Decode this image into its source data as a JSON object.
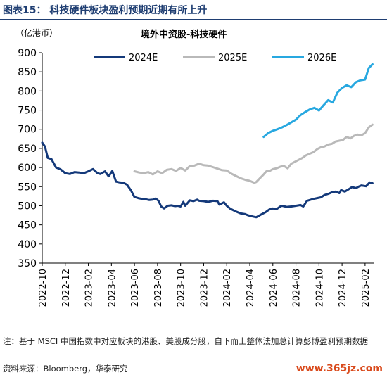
{
  "header": {
    "title": "图表15： 科技硬件板块盈利预期近期有所上升"
  },
  "chart_data": {
    "type": "line",
    "title": "境外中资股-科技硬件",
    "unit_label": "（亿港币）",
    "ylim": [
      350,
      900
    ],
    "yticks": [
      350,
      400,
      450,
      500,
      550,
      600,
      650,
      700,
      750,
      800,
      850,
      900
    ],
    "xticks": [
      "2022-10",
      "2022-12",
      "2023-02",
      "2023-04",
      "2023-06",
      "2023-08",
      "2023-10",
      "2023-12",
      "2024-02",
      "2024-04",
      "2024-06",
      "2024-08",
      "2024-10",
      "2024-12",
      "2025-02"
    ],
    "legend_position": "top",
    "series": [
      {
        "name": "2024E",
        "color": "#14397a",
        "x": [
          0,
          0.3,
          0.6,
          1,
          1.5,
          2,
          2.5,
          3,
          3.5,
          4,
          4.5,
          5,
          5.5,
          6,
          6.3,
          6.8,
          7.2,
          7.6,
          8,
          8.4,
          8.8,
          9.2,
          9.6,
          10,
          10.4,
          10.8,
          11.2,
          11.6,
          12,
          12.3,
          12.6,
          12.9,
          13.2,
          13.6,
          14,
          14.4,
          14.7,
          15,
          15.3,
          15.5,
          16,
          16.4,
          16.8,
          17,
          17.5,
          18,
          18.5,
          19,
          19.2,
          19.7,
          20,
          20.4,
          21,
          21.5,
          22,
          22.3,
          22.8,
          23.2,
          23.8,
          24.2,
          24.6,
          25,
          25.4,
          25.8,
          26,
          26.5,
          27,
          27.5,
          28,
          28.3,
          28.7,
          29,
          29.4,
          29.8,
          30.2,
          30.6,
          31,
          31.4,
          31.8,
          32.2,
          32.4,
          32.8,
          33.2,
          33.6,
          34,
          34.3,
          34.6,
          35.1,
          35.5,
          35.8
        ],
        "values": [
          665,
          655,
          625,
          622,
          600,
          595,
          585,
          583,
          588,
          587,
          585,
          590,
          596,
          585,
          583,
          590,
          577,
          591,
          563,
          561,
          560,
          555,
          541,
          523,
          520,
          518,
          517,
          515,
          516,
          519,
          513,
          498,
          493,
          500,
          501,
          499,
          500,
          498,
          510,
          500,
          514,
          512,
          516,
          513,
          512,
          510,
          513,
          512,
          503,
          509,
          500,
          492,
          485,
          480,
          478,
          475,
          472,
          470,
          478,
          483,
          490,
          493,
          491,
          498,
          500,
          497,
          498,
          500,
          502,
          498,
          513,
          515,
          518,
          520,
          522,
          528,
          531,
          535,
          537,
          533,
          541,
          537,
          543,
          549,
          546,
          550,
          553,
          551,
          561,
          559
        ]
      },
      {
        "name": "2025E",
        "color": "#b9b9b9",
        "x": [
          10,
          10.5,
          11,
          11.5,
          12,
          12.5,
          13,
          13.5,
          14,
          14.5,
          15,
          15.5,
          16,
          16.5,
          17,
          17.5,
          18,
          18.5,
          19,
          19.5,
          20,
          20.5,
          21,
          21.5,
          22,
          22.5,
          23,
          23.2,
          23.6,
          24,
          24.3,
          24.6,
          25,
          25.4,
          25.8,
          26.2,
          26.6,
          27,
          27.4,
          27.8,
          28.2,
          28.6,
          29,
          29.4,
          29.8,
          30.2,
          30.6,
          31,
          31.4,
          31.8,
          32.2,
          32.6,
          33,
          33.4,
          33.8,
          34.2,
          34.6,
          35,
          35.4,
          35.8
        ],
        "values": [
          590,
          587,
          585,
          588,
          582,
          590,
          585,
          594,
          596,
          591,
          599,
          592,
          604,
          605,
          610,
          606,
          605,
          601,
          597,
          593,
          592,
          584,
          578,
          572,
          568,
          565,
          560,
          562,
          572,
          582,
          590,
          590,
          596,
          598,
          602,
          604,
          598,
          610,
          615,
          620,
          625,
          632,
          636,
          640,
          648,
          653,
          655,
          660,
          662,
          668,
          670,
          672,
          680,
          676,
          683,
          686,
          684,
          690,
          705,
          712
        ]
      },
      {
        "name": "2026E",
        "color": "#28a8e0",
        "x": [
          24,
          24.5,
          25,
          25.5,
          26,
          26.5,
          27,
          27.5,
          28,
          28.5,
          29,
          29.5,
          30,
          30.5,
          31,
          31.5,
          32,
          32.5,
          33,
          33.5,
          34,
          34.5,
          35,
          35.4,
          35.8
        ],
        "values": [
          680,
          690,
          696,
          700,
          705,
          711,
          718,
          725,
          737,
          745,
          752,
          756,
          749,
          763,
          776,
          770,
          796,
          808,
          815,
          810,
          823,
          828,
          830,
          860,
          870
        ]
      }
    ]
  },
  "note": "注：基于 MSCI 中国指数中对应板块的港股、美股成分股，自下而上整体法加总计算彭博盈利预期数据",
  "source": "资料来源：Bloomberg，华泰研究",
  "watermark": "www.365jz.com"
}
